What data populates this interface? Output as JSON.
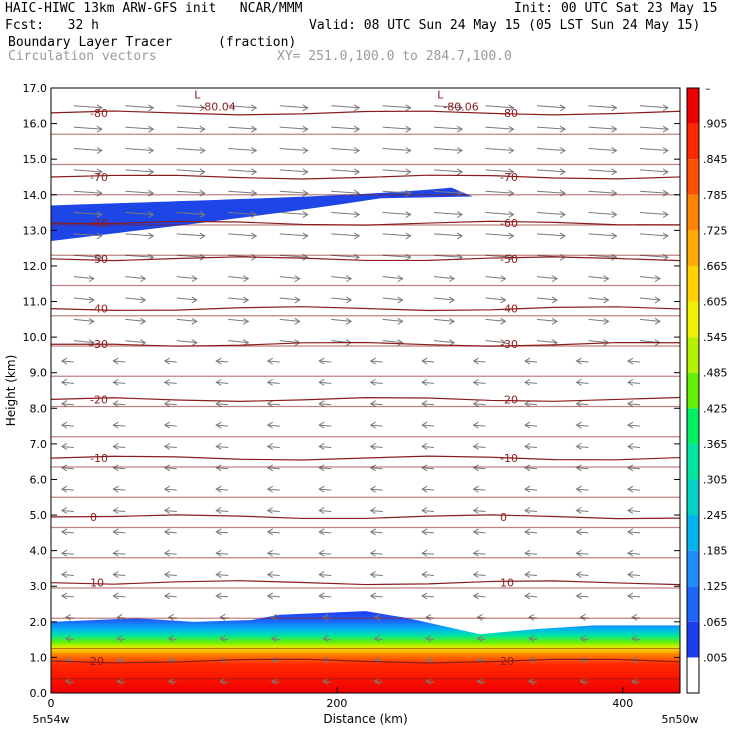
{
  "header": {
    "line1_left": "HAIC-HIWC 13km ARW-GFS init   NCAR/MMM",
    "line1_right": "Init: 00 UTC Sat 23 May 15",
    "line2_left": "Fcst:   32 h",
    "line2_right": "Valid: 08 UTC Sun 24 May 15 (05 LST Sun 24 May 15)",
    "field_name": "Boundary Layer Tracer",
    "field_units": "(fraction)",
    "vectors_label": "Circulation vectors",
    "cross_section": "XY= 251.0,100.0 to 284.7,100.0"
  },
  "colors": {
    "contour": "#8b1c1c",
    "vector": "#7a7a7a",
    "cloud_blue": "#1e46e6"
  },
  "chart_data": {
    "type": "heatmap",
    "xlabel": "Distance (km)",
    "ylabel": "Height (km)",
    "xlim": [
      0,
      440
    ],
    "ylim": [
      0,
      17
    ],
    "x_ticks": [
      0,
      200,
      400
    ],
    "y_ticks": [
      "0.0",
      "1.0",
      "2.0",
      "3.0",
      "4.0",
      "5.0",
      "6.0",
      "7.0",
      "8.0",
      "9.0",
      "10.0",
      "11.0",
      "12.0",
      "13.0",
      "14.0",
      "15.0",
      "16.0",
      "17.0"
    ],
    "x_endpoints": [
      "5n54w",
      "5n50w"
    ],
    "colorbar_labels": [
      ".005",
      ".065",
      ".125",
      ".185",
      ".245",
      ".305",
      ".365",
      ".425",
      ".485",
      ".545",
      ".605",
      ".665",
      ".725",
      ".785",
      ".845",
      ".905"
    ],
    "colorbar_colors": [
      "#ffffff",
      "#1e3cf0",
      "#1e64ff",
      "#1e8cff",
      "#00b4f0",
      "#00d2c8",
      "#00e6a0",
      "#00f064",
      "#64f000",
      "#b4f000",
      "#f0f000",
      "#ffd200",
      "#ffaa00",
      "#ff8200",
      "#ff5000",
      "#ff2800",
      "#f00000"
    ],
    "temperature_contours": [
      {
        "label": "20",
        "y": 0.9
      },
      {
        "label": "10",
        "y": 3.1
      },
      {
        "label": "0",
        "y": 4.95
      },
      {
        "label": "-10",
        "y": 6.6
      },
      {
        "label": "-20",
        "y": 8.25
      },
      {
        "label": "-30",
        "y": 9.8
      },
      {
        "label": "-40",
        "y": 10.8
      },
      {
        "label": "-50",
        "y": 12.2
      },
      {
        "label": "-60",
        "y": 13.2
      },
      {
        "label": "-70",
        "y": 14.5
      },
      {
        "label": "-80",
        "y": 16.3
      }
    ],
    "low_labels": [
      {
        "text": "L",
        "value": "-80.04",
        "x": 110,
        "y": 16.7
      },
      {
        "text": "L",
        "value": "-80.06",
        "x": 280,
        "y": 16.7
      }
    ],
    "upper_tracer_layer": {
      "x": [
        0,
        295
      ],
      "y_bottom": [
        12.7,
        13.9
      ],
      "y_top": [
        13.7,
        14.2
      ],
      "value": 0.07
    },
    "boundary_layer_top_km": [
      {
        "x": 0,
        "y": 2.0
      },
      {
        "x": 60,
        "y": 2.1
      },
      {
        "x": 100,
        "y": 2.0
      },
      {
        "x": 140,
        "y": 2.05
      },
      {
        "x": 160,
        "y": 2.2
      },
      {
        "x": 220,
        "y": 2.3
      },
      {
        "x": 250,
        "y": 2.1
      },
      {
        "x": 300,
        "y": 1.65
      },
      {
        "x": 340,
        "y": 1.8
      },
      {
        "x": 380,
        "y": 1.9
      },
      {
        "x": 440,
        "y": 1.9
      }
    ]
  }
}
